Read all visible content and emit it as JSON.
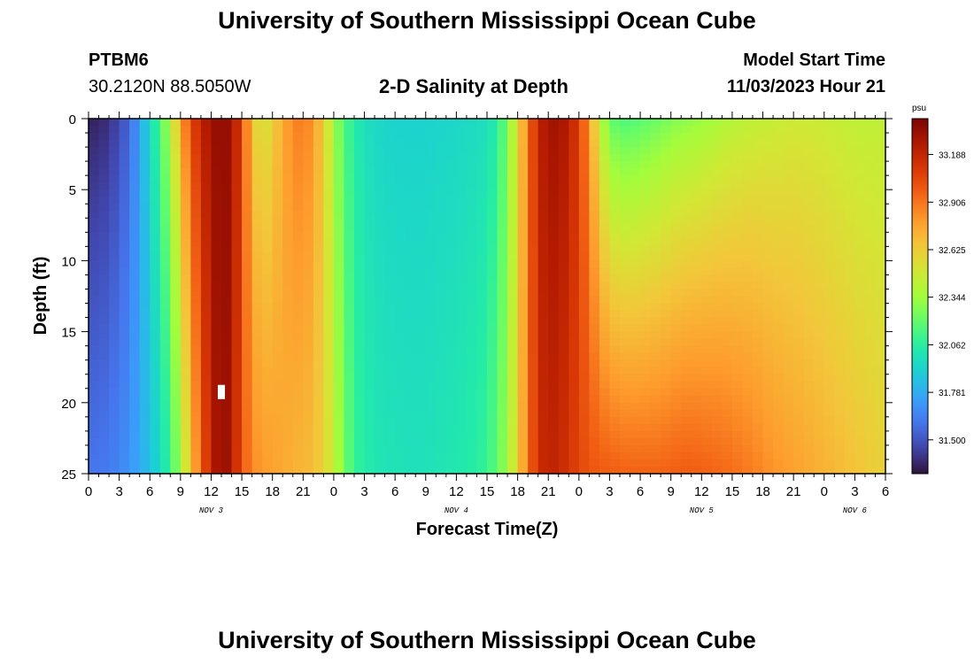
{
  "header": {
    "title": "University of Southern Mississippi Ocean Cube",
    "station_id": "PTBM6",
    "station_coords": "30.2120N  88.5050W",
    "chart_title": "2-D Salinity at Depth",
    "model_label": "Model Start Time",
    "model_time": "11/03/2023 Hour 21"
  },
  "footer": {
    "title": "University of Southern Mississippi Ocean Cube"
  },
  "chart_data": {
    "type": "heatmap",
    "title": "2-D Salinity at Depth",
    "xlabel": "Forecast Time(Z)",
    "ylabel": "Depth (ft)",
    "x_range_hours": [
      0,
      78
    ],
    "y_range_ft": [
      0,
      25
    ],
    "x_tick_labels": [
      "0",
      "3",
      "6",
      "9",
      "12",
      "15",
      "18",
      "21",
      "0",
      "3",
      "6",
      "9",
      "12",
      "15",
      "18",
      "21",
      "0",
      "3",
      "6",
      "9",
      "12",
      "15",
      "18",
      "21",
      "0",
      "3",
      "6"
    ],
    "y_tick_labels": [
      "0",
      "5",
      "10",
      "15",
      "20",
      "25"
    ],
    "date_labels": [
      {
        "label": "NOV 3",
        "hour": 12
      },
      {
        "label": "NOV 4",
        "hour": 36
      },
      {
        "label": "NOV 5",
        "hour": 60
      },
      {
        "label": "NOV 6",
        "hour": 75
      }
    ],
    "colorbar": {
      "unit": "psu",
      "min": 31.3,
      "max": 33.4,
      "tick_labels": [
        "33.188",
        "32.906",
        "32.625",
        "32.344",
        "32.062",
        "31.781",
        "31.500"
      ],
      "tick_values": [
        33.188,
        32.906,
        32.625,
        32.344,
        32.062,
        31.781,
        31.5
      ]
    },
    "colors": {
      "low": "#30123b",
      "mid": "#28bceb",
      "high": "#7a0403",
      "marker": "#ffffff"
    },
    "depth_profile_hours": [
      0,
      2,
      4,
      6,
      7,
      8,
      9,
      10,
      11,
      12,
      13,
      14,
      15,
      16,
      17,
      18,
      19,
      20,
      21,
      22,
      23,
      24,
      25,
      26,
      27,
      28,
      29,
      30,
      31,
      32,
      33,
      34,
      35,
      36,
      37,
      38,
      39,
      40,
      41,
      42,
      43,
      44,
      45,
      46,
      47,
      48,
      49,
      50,
      51,
      52,
      53,
      54,
      55,
      56,
      57,
      58,
      59,
      60,
      61,
      62,
      63,
      64,
      65,
      66,
      67,
      68,
      69,
      70,
      71,
      72,
      73,
      74,
      75,
      76,
      77,
      78
    ],
    "surface_salinity": [
      31.34,
      31.38,
      31.55,
      31.95,
      32.15,
      32.4,
      32.75,
      33.05,
      33.2,
      33.3,
      33.35,
      33.3,
      33.05,
      32.65,
      32.5,
      32.6,
      32.75,
      32.85,
      32.9,
      32.8,
      32.62,
      32.35,
      32.15,
      32.05,
      31.98,
      31.95,
      31.93,
      31.92,
      31.92,
      31.92,
      31.92,
      31.93,
      31.93,
      31.94,
      31.95,
      31.96,
      31.98,
      32.05,
      32.25,
      32.55,
      32.9,
      33.2,
      33.28,
      33.3,
      33.22,
      33.08,
      32.8,
      32.45,
      32.2,
      32.15,
      32.15,
      32.17,
      32.2,
      32.22,
      32.26,
      32.28,
      32.3,
      32.32,
      32.35,
      32.38,
      32.4,
      32.42,
      32.44,
      32.45,
      32.46,
      32.47,
      32.48,
      32.48,
      32.48,
      32.47,
      32.46,
      32.45,
      32.44,
      32.44,
      32.44,
      32.44
    ],
    "bottom_salinity": [
      31.6,
      31.62,
      31.7,
      31.85,
      31.95,
      32.1,
      32.35,
      32.65,
      32.95,
      33.2,
      33.35,
      33.25,
      33.0,
      32.85,
      32.8,
      32.78,
      32.75,
      32.72,
      32.7,
      32.68,
      32.6,
      32.45,
      32.25,
      32.1,
      32.05,
      32.02,
      32.0,
      32.0,
      31.99,
      31.99,
      31.99,
      32.0,
      32.01,
      32.02,
      32.04,
      32.06,
      32.1,
      32.2,
      32.35,
      32.6,
      32.9,
      33.15,
      33.2,
      33.18,
      33.12,
      33.05,
      33.0,
      32.98,
      32.97,
      32.96,
      32.95,
      32.95,
      32.95,
      32.95,
      32.96,
      32.97,
      32.97,
      32.96,
      32.95,
      32.94,
      32.92,
      32.9,
      32.88,
      32.85,
      32.82,
      32.8,
      32.78,
      32.76,
      32.74,
      32.72,
      32.7,
      32.68,
      32.66,
      32.64,
      32.62,
      32.6
    ],
    "missing_cell": {
      "hour": 13,
      "depth_ft": 19
    }
  }
}
